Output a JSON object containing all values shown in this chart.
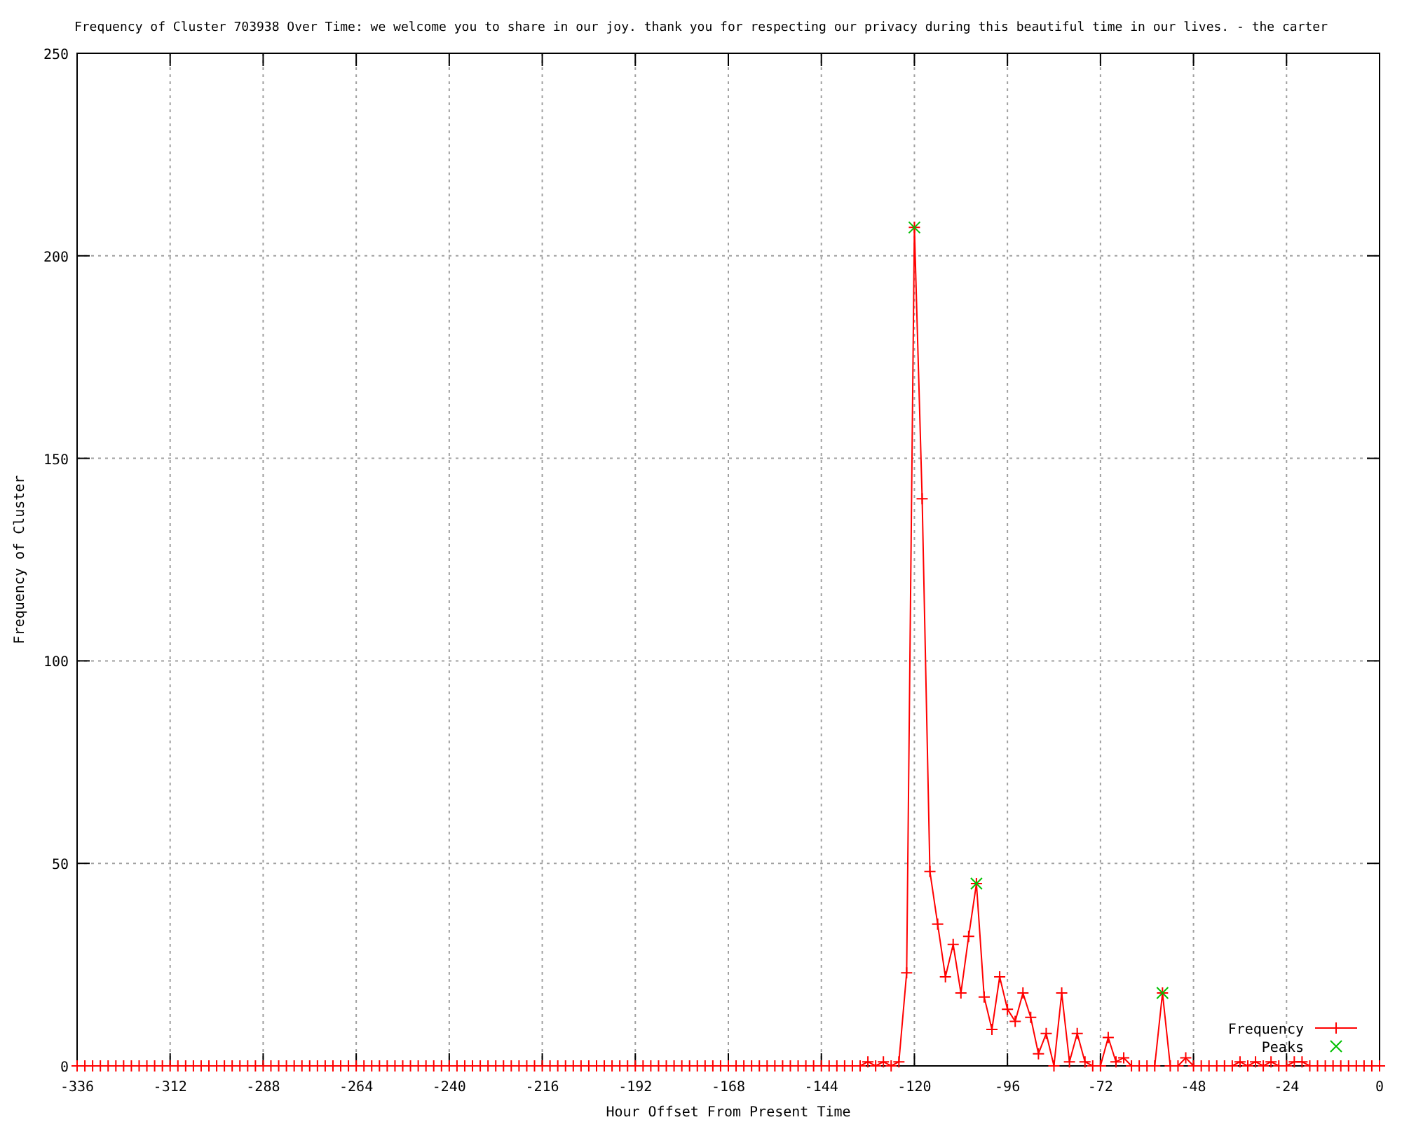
{
  "chart_data": {
    "type": "line",
    "title": "Frequency of Cluster 703938 Over Time: we welcome you to share in our joy. thank you for respecting our privacy during this beautiful time in our lives. - the carter",
    "xlabel": "Hour Offset From Present Time",
    "ylabel": "Frequency of Cluster",
    "xlim": [
      -336,
      0
    ],
    "xticks": [
      -336,
      -312,
      -288,
      -264,
      -240,
      -216,
      -192,
      -168,
      -144,
      -120,
      -96,
      -72,
      -48,
      -24,
      0
    ],
    "ylim": [
      0,
      250
    ],
    "yticks": [
      0,
      50,
      100,
      150,
      200,
      250
    ],
    "grid": true,
    "legend": "bottom right",
    "series": [
      {
        "name": "Frequency",
        "color": "#ff0000",
        "marker": "cross",
        "x": [
          -336,
          -334,
          -332,
          -330,
          -328,
          -326,
          -324,
          -322,
          -320,
          -318,
          -316,
          -314,
          -312,
          -310,
          -308,
          -306,
          -304,
          -302,
          -300,
          -298,
          -296,
          -294,
          -292,
          -290,
          -288,
          -286,
          -284,
          -282,
          -280,
          -278,
          -276,
          -274,
          -272,
          -270,
          -268,
          -266,
          -264,
          -262,
          -260,
          -258,
          -256,
          -254,
          -252,
          -250,
          -248,
          -246,
          -244,
          -242,
          -240,
          -238,
          -236,
          -234,
          -232,
          -230,
          -228,
          -226,
          -224,
          -222,
          -220,
          -218,
          -216,
          -214,
          -212,
          -210,
          -208,
          -206,
          -204,
          -202,
          -200,
          -198,
          -196,
          -194,
          -192,
          -190,
          -188,
          -186,
          -184,
          -182,
          -180,
          -178,
          -176,
          -174,
          -172,
          -170,
          -168,
          -166,
          -164,
          -162,
          -160,
          -158,
          -156,
          -154,
          -152,
          -150,
          -148,
          -146,
          -144,
          -142,
          -140,
          -138,
          -136,
          -134,
          -132,
          -130,
          -128,
          -126,
          -124,
          -122,
          -120,
          -118,
          -116,
          -114,
          -112,
          -110,
          -108,
          -106,
          -104,
          -102,
          -100,
          -98,
          -96,
          -94,
          -92,
          -90,
          -88,
          -86,
          -84,
          -82,
          -80,
          -78,
          -76,
          -74,
          -72,
          -70,
          -68,
          -66,
          -64,
          -62,
          -60,
          -58,
          -56,
          -54,
          -52,
          -50,
          -48,
          -46,
          -44,
          -42,
          -40,
          -38,
          -36,
          -34,
          -32,
          -30,
          -28,
          -26,
          -24,
          -22,
          -20,
          -18,
          -16,
          -14,
          -12,
          -10,
          -8,
          -6,
          -4,
          -2,
          0
        ],
        "values": [
          0,
          0,
          0,
          0,
          0,
          0,
          0,
          0,
          0,
          0,
          0,
          0,
          0,
          0,
          0,
          0,
          0,
          0,
          0,
          0,
          0,
          0,
          0,
          0,
          0,
          0,
          0,
          0,
          0,
          0,
          0,
          0,
          0,
          0,
          0,
          0,
          0,
          0,
          0,
          0,
          0,
          0,
          0,
          0,
          0,
          0,
          0,
          0,
          0,
          0,
          0,
          0,
          0,
          0,
          0,
          0,
          0,
          0,
          0,
          0,
          0,
          0,
          0,
          0,
          0,
          0,
          0,
          0,
          0,
          0,
          0,
          0,
          0,
          0,
          0,
          0,
          0,
          0,
          0,
          0,
          0,
          0,
          0,
          0,
          0,
          0,
          0,
          0,
          0,
          0,
          0,
          0,
          0,
          0,
          0,
          0,
          0,
          0,
          0,
          0,
          0,
          0,
          1,
          0,
          1,
          0,
          1,
          23,
          207,
          140,
          48,
          35,
          22,
          30,
          18,
          32,
          45,
          17,
          9,
          22,
          14,
          11,
          18,
          12,
          3,
          8,
          0,
          18,
          1,
          8,
          1,
          0,
          0,
          7,
          1,
          2,
          0,
          0,
          0,
          0,
          18,
          0,
          0,
          2,
          0,
          0,
          0,
          0,
          0,
          0,
          1,
          0,
          1,
          0,
          1,
          0,
          0,
          1,
          1,
          0,
          0,
          0,
          0,
          0,
          0,
          0,
          0,
          0,
          0
        ]
      },
      {
        "name": "Peaks",
        "type": "scatter",
        "color": "#00c000",
        "marker": "cross",
        "x": [
          -120,
          -104,
          -56
        ],
        "values": [
          207,
          45,
          18
        ]
      }
    ]
  }
}
